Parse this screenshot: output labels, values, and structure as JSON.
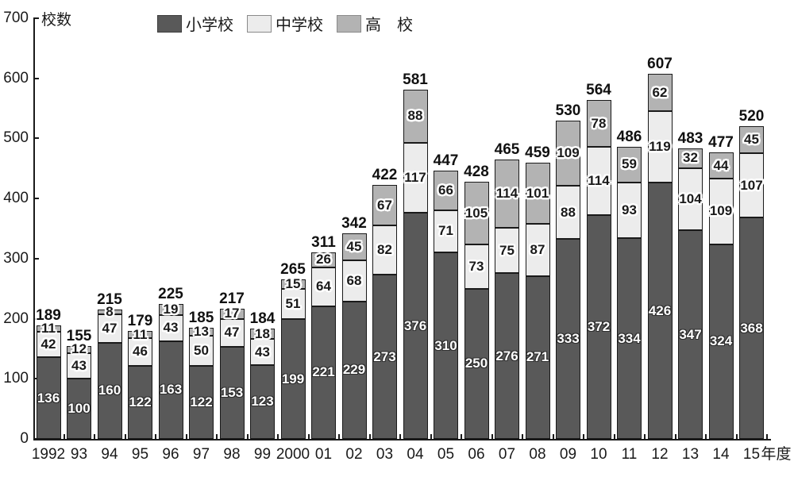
{
  "chart_data": {
    "type": "bar",
    "variant": "stacked",
    "title": "",
    "ylabel": "校数",
    "xlabel": "",
    "xaxis_suffix": "年度",
    "ylim": [
      0,
      700
    ],
    "yticks": [
      0,
      100,
      200,
      300,
      400,
      500,
      600,
      700
    ],
    "grid": false,
    "legend_position": "top",
    "categories": [
      "1992",
      "93",
      "94",
      "95",
      "96",
      "97",
      "98",
      "99",
      "2000",
      "01",
      "02",
      "03",
      "04",
      "05",
      "06",
      "07",
      "08",
      "09",
      "10",
      "11",
      "12",
      "13",
      "14",
      "15"
    ],
    "series": [
      {
        "name": "小学校",
        "color": "#595959",
        "label_color": "#ffffff",
        "values": [
          136,
          100,
          160,
          122,
          163,
          122,
          153,
          123,
          199,
          221,
          229,
          273,
          376,
          310,
          250,
          276,
          271,
          333,
          372,
          334,
          426,
          347,
          324,
          368
        ]
      },
      {
        "name": "中学校",
        "color": "#ececec",
        "label_color": "#1a1a1a",
        "values": [
          42,
          43,
          47,
          46,
          43,
          50,
          47,
          43,
          51,
          64,
          68,
          82,
          117,
          71,
          73,
          75,
          87,
          88,
          114,
          93,
          119,
          104,
          109,
          107
        ]
      },
      {
        "name": "高　校",
        "color": "#b3b3b3",
        "label_color": "#1a1a1a",
        "values": [
          11,
          12,
          8,
          11,
          19,
          13,
          17,
          18,
          15,
          26,
          45,
          67,
          88,
          66,
          105,
          114,
          101,
          109,
          78,
          59,
          62,
          32,
          44,
          45
        ]
      }
    ],
    "totals": [
      189,
      155,
      215,
      179,
      225,
      185,
      217,
      184,
      265,
      311,
      342,
      422,
      581,
      447,
      428,
      465,
      459,
      530,
      564,
      486,
      607,
      483,
      477,
      520
    ]
  }
}
